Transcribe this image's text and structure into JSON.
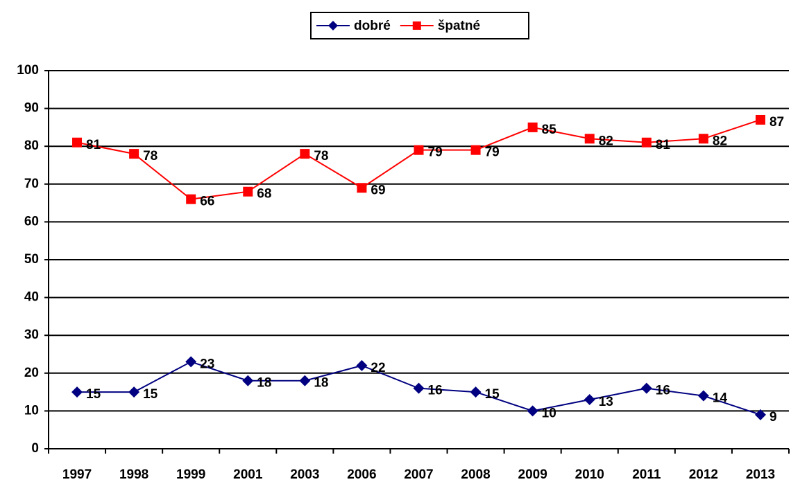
{
  "chart_data": {
    "type": "line",
    "categories": [
      "1997",
      "1998",
      "1999",
      "2001",
      "2003",
      "2006",
      "2007",
      "2008",
      "2009",
      "2010",
      "2011",
      "2012",
      "2013"
    ],
    "series": [
      {
        "name": "dobré",
        "color": "#000080",
        "marker": "diamond",
        "values": [
          15,
          15,
          23,
          18,
          18,
          22,
          16,
          15,
          10,
          13,
          16,
          14,
          9
        ]
      },
      {
        "name": "špatné",
        "color": "#ff0000",
        "marker": "square",
        "values": [
          81,
          78,
          66,
          68,
          78,
          69,
          79,
          79,
          85,
          82,
          81,
          82,
          87
        ]
      }
    ],
    "ylim": [
      0,
      100
    ],
    "yticks": [
      0,
      10,
      20,
      30,
      40,
      50,
      60,
      70,
      80,
      90,
      100
    ],
    "grid": true,
    "legend": "top"
  }
}
